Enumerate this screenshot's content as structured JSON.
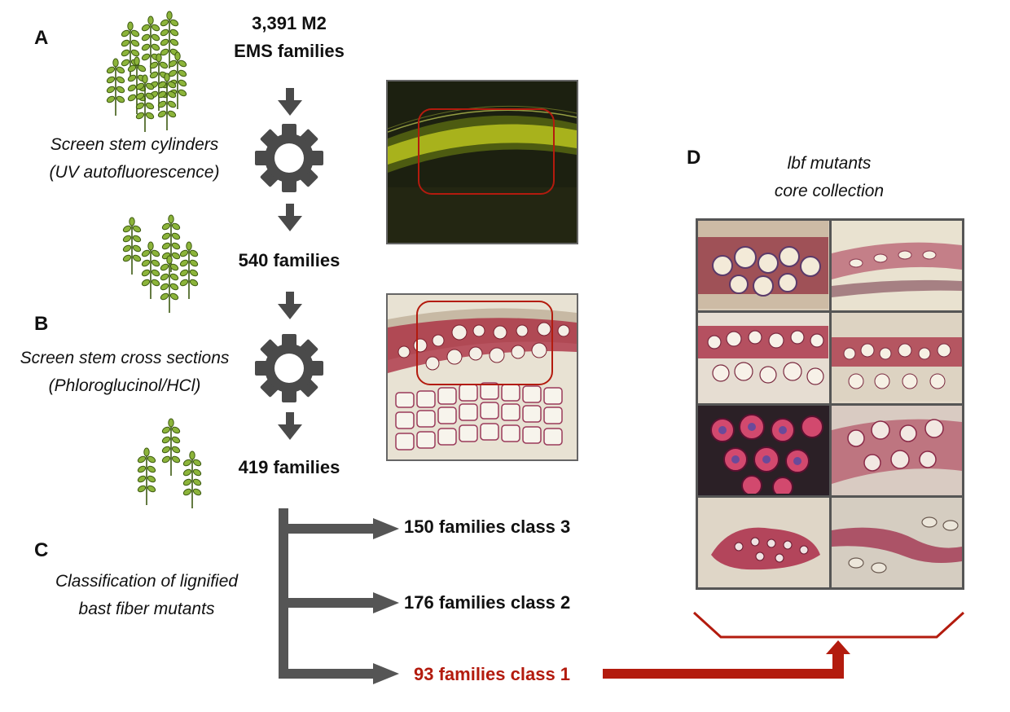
{
  "panels": {
    "a": "A",
    "b": "B",
    "c": "C",
    "d": "D"
  },
  "flow": {
    "start_line1": "3,391 M2",
    "start_line2": "EMS families",
    "screen1_line1": "Screen stem cylinders",
    "screen1_line2": "(UV autofluorescence)",
    "step2": "540 families",
    "screen2_line1": "Screen stem cross sections",
    "screen2_line2": "(Phloroglucinol/HCl)",
    "step3": "419 families",
    "classify_line1": "Classification of lignified",
    "classify_line2": "bast fiber mutants"
  },
  "classes": [
    {
      "label": "150 families class 3",
      "color": "#111111"
    },
    {
      "label": "176 families class 2",
      "color": "#111111"
    },
    {
      "label": "93 families class 1",
      "color": "#b31b0e"
    }
  ],
  "collection": {
    "line1": "lbf mutants",
    "line2": "core collection"
  },
  "colors": {
    "arrow_gray": "#555555",
    "accent_red": "#b31b0e",
    "plant_green": "#7fa82e"
  }
}
